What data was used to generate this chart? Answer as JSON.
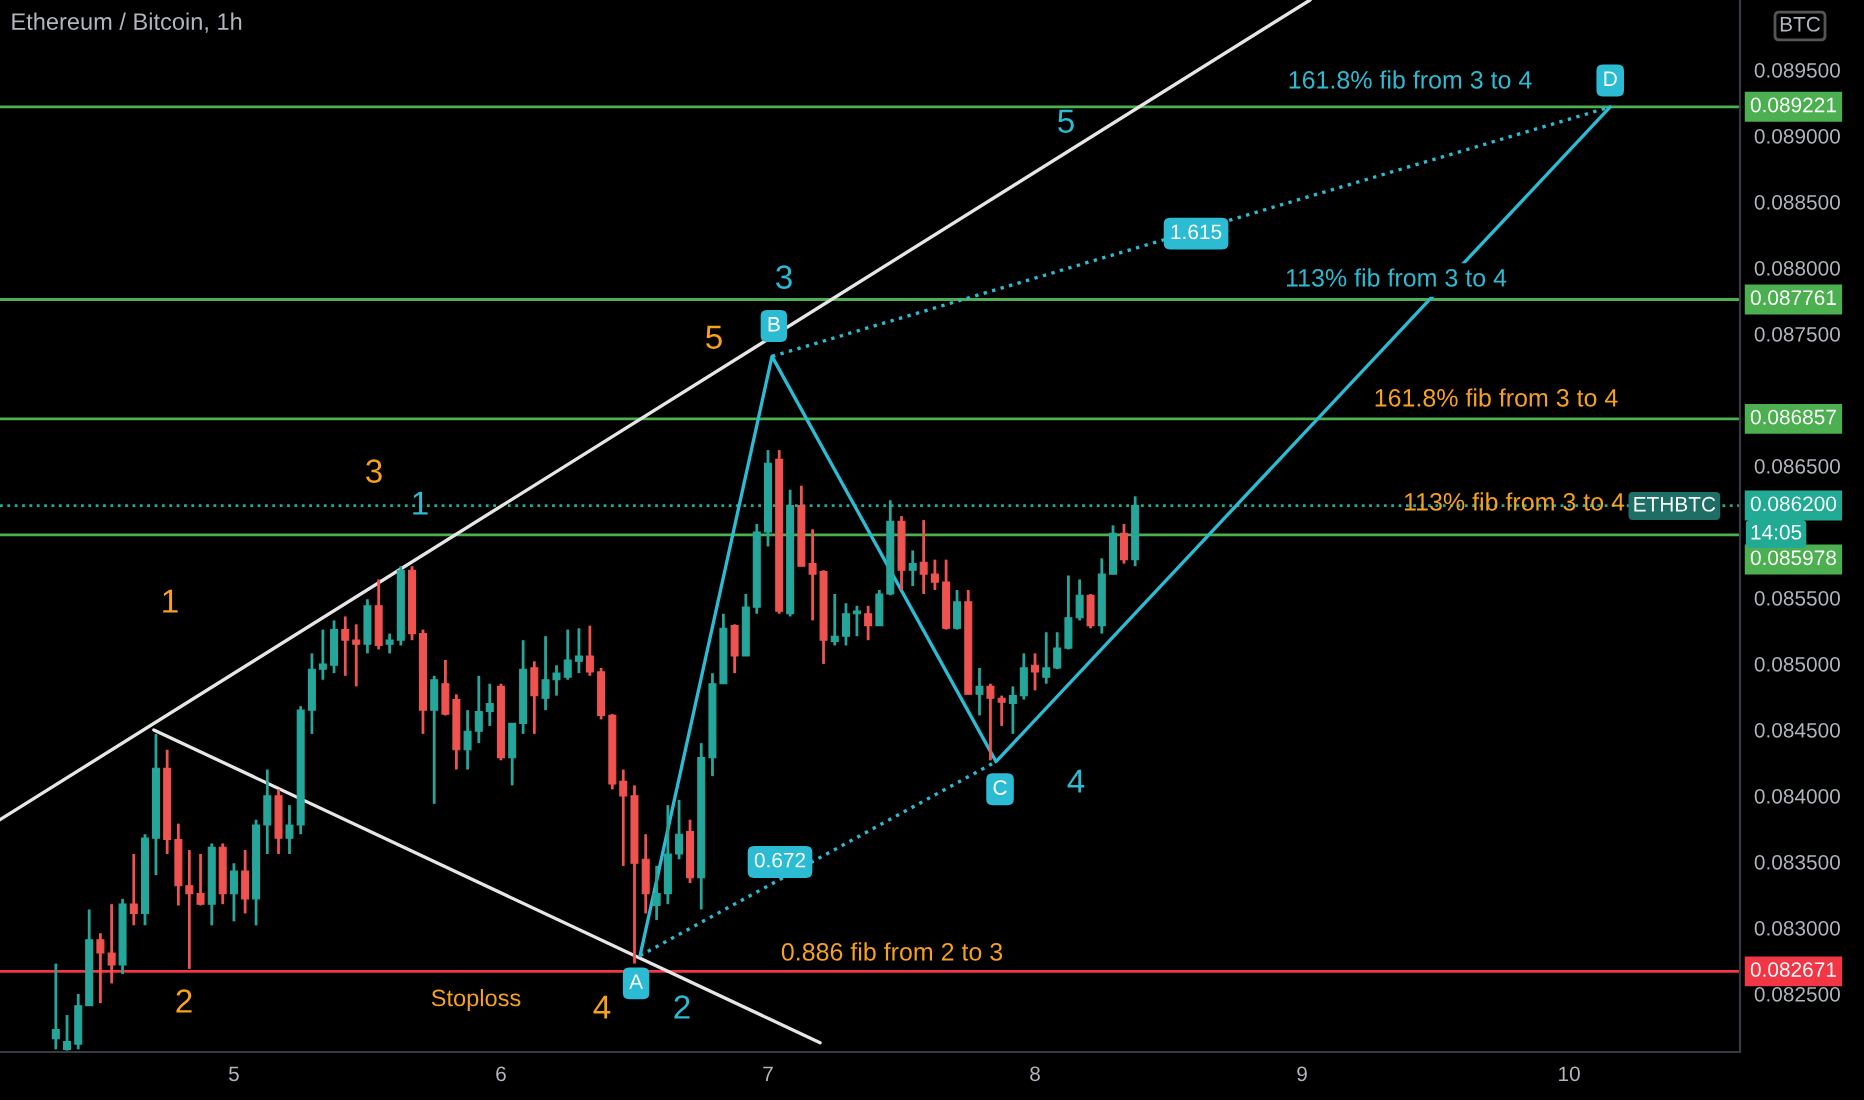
{
  "chart_data": {
    "type": "candlestick",
    "title": "Ethereum / Bitcoin, 1h",
    "x": [
      4.333,
      4.375,
      4.417,
      4.458,
      4.5,
      4.542,
      4.583,
      4.625,
      4.667,
      4.708,
      4.75,
      4.792,
      4.833,
      4.875,
      4.917,
      4.958,
      5,
      5.042,
      5.083,
      5.125,
      5.167,
      5.208,
      5.25,
      5.292,
      5.333,
      5.375,
      5.417,
      5.458,
      5.5,
      5.542,
      5.583,
      5.625,
      5.667,
      5.708,
      5.75,
      5.792,
      5.833,
      5.875,
      5.917,
      5.958,
      6,
      6.042,
      6.083,
      6.125,
      6.167,
      6.208,
      6.25,
      6.292,
      6.333,
      6.375,
      6.417,
      6.458,
      6.5,
      6.542,
      6.583,
      6.625,
      6.667,
      6.708,
      6.75,
      6.792,
      6.833,
      6.875,
      6.917,
      6.958,
      7,
      7.042,
      7.083,
      7.125,
      7.167,
      7.208,
      7.25,
      7.292,
      7.333,
      7.375,
      7.417,
      7.458,
      7.5,
      7.542,
      7.583,
      7.625,
      7.667,
      7.708,
      7.75,
      7.792,
      7.833,
      7.875,
      7.917,
      7.958,
      8,
      8.042,
      8.083,
      8.125,
      8.167,
      8.208,
      8.25,
      8.292,
      8.333,
      8.375
    ],
    "ohlc": [
      [
        0.08216,
        0.08273,
        0.08208,
        0.08223
      ],
      [
        0.08208,
        0.08234,
        0.08207,
        0.08214
      ],
      [
        0.08212,
        0.0825,
        0.08208,
        0.08241
      ],
      [
        0.08241,
        0.08314,
        0.08241,
        0.08291
      ],
      [
        0.08291,
        0.08296,
        0.08243,
        0.08281
      ],
      [
        0.08281,
        0.08318,
        0.08258,
        0.08272
      ],
      [
        0.08272,
        0.08322,
        0.08265,
        0.08318
      ],
      [
        0.08318,
        0.08356,
        0.08302,
        0.08311
      ],
      [
        0.08311,
        0.08371,
        0.08302,
        0.08368
      ],
      [
        0.08368,
        0.08447,
        0.0834,
        0.08421
      ],
      [
        0.08421,
        0.08435,
        0.08356,
        0.08367
      ],
      [
        0.08367,
        0.08379,
        0.08317,
        0.08332
      ],
      [
        0.08332,
        0.08359,
        0.08269,
        0.08326
      ],
      [
        0.08326,
        0.08356,
        0.08317,
        0.08318
      ],
      [
        0.08318,
        0.08364,
        0.08302,
        0.08361
      ],
      [
        0.08361,
        0.08364,
        0.08318,
        0.08326
      ],
      [
        0.08326,
        0.08349,
        0.08305,
        0.08343
      ],
      [
        0.08343,
        0.08359,
        0.08311,
        0.08322
      ],
      [
        0.08322,
        0.08382,
        0.08302,
        0.08378
      ],
      [
        0.08378,
        0.0842,
        0.08356,
        0.084
      ],
      [
        0.084,
        0.08405,
        0.08356,
        0.08368
      ],
      [
        0.08368,
        0.08393,
        0.08356,
        0.08378
      ],
      [
        0.08378,
        0.08468,
        0.08371,
        0.08465
      ],
      [
        0.08465,
        0.08508,
        0.08447,
        0.08496
      ],
      [
        0.08496,
        0.08526,
        0.08488,
        0.085
      ],
      [
        0.08499,
        0.08533,
        0.08493,
        0.08526
      ],
      [
        0.08526,
        0.08536,
        0.08491,
        0.08518
      ],
      [
        0.08518,
        0.0853,
        0.08483,
        0.08515
      ],
      [
        0.08515,
        0.08549,
        0.08508,
        0.08544
      ],
      [
        0.08544,
        0.08564,
        0.08511,
        0.08514
      ],
      [
        0.08515,
        0.08523,
        0.08508,
        0.08518
      ],
      [
        0.08518,
        0.08574,
        0.08514,
        0.08571
      ],
      [
        0.08571,
        0.08574,
        0.08518,
        0.08523
      ],
      [
        0.08523,
        0.08526,
        0.08447,
        0.08465
      ],
      [
        0.08465,
        0.08491,
        0.08394,
        0.08488
      ],
      [
        0.08485,
        0.08503,
        0.08461,
        0.08462
      ],
      [
        0.08473,
        0.08477,
        0.0842,
        0.08435
      ],
      [
        0.08435,
        0.08465,
        0.0842,
        0.08449
      ],
      [
        0.08449,
        0.08491,
        0.0844,
        0.08464
      ],
      [
        0.08464,
        0.08485,
        0.08453,
        0.0847
      ],
      [
        0.08483,
        0.08485,
        0.08427,
        0.08429
      ],
      [
        0.08429,
        0.08455,
        0.08408,
        0.08455
      ],
      [
        0.08455,
        0.08518,
        0.08447,
        0.08496
      ],
      [
        0.08497,
        0.08502,
        0.08447,
        0.08476
      ],
      [
        0.08474,
        0.08521,
        0.08465,
        0.08488
      ],
      [
        0.08488,
        0.08499,
        0.08476,
        0.08493
      ],
      [
        0.0849,
        0.08526,
        0.08488,
        0.08503
      ],
      [
        0.08502,
        0.08527,
        0.08493,
        0.08506
      ],
      [
        0.08506,
        0.08529,
        0.08491,
        0.08494
      ],
      [
        0.08494,
        0.08497,
        0.08458,
        0.08461
      ],
      [
        0.08461,
        0.08462,
        0.08405,
        0.08409
      ],
      [
        0.08411,
        0.0842,
        0.08347,
        0.084
      ],
      [
        0.084,
        0.08408,
        0.08273,
        0.08349
      ],
      [
        0.08352,
        0.08371,
        0.08311,
        0.08326
      ],
      [
        0.08317,
        0.08347,
        0.08306,
        0.08326
      ],
      [
        0.08326,
        0.08393,
        0.08318,
        0.08356
      ],
      [
        0.08356,
        0.08397,
        0.08352,
        0.08371
      ],
      [
        0.08373,
        0.08382,
        0.08334,
        0.08338
      ],
      [
        0.08338,
        0.0844,
        0.08314,
        0.08429
      ],
      [
        0.08429,
        0.08493,
        0.08415,
        0.08485
      ],
      [
        0.08485,
        0.08538,
        0.08485,
        0.08527
      ],
      [
        0.08529,
        0.0853,
        0.08493,
        0.08506
      ],
      [
        0.08506,
        0.08553,
        0.08506,
        0.08543
      ],
      [
        0.08543,
        0.08606,
        0.08538,
        0.086
      ],
      [
        0.086,
        0.08662,
        0.08589,
        0.08652
      ],
      [
        0.08655,
        0.08662,
        0.08538,
        0.0854
      ],
      [
        0.08538,
        0.08632,
        0.08536,
        0.0862
      ],
      [
        0.0862,
        0.08635,
        0.08574,
        0.08574
      ],
      [
        0.08576,
        0.08602,
        0.08533,
        0.08568
      ],
      [
        0.0857,
        0.08571,
        0.085,
        0.08518
      ],
      [
        0.08517,
        0.08553,
        0.08514,
        0.08521
      ],
      [
        0.08521,
        0.08546,
        0.08514,
        0.08538
      ],
      [
        0.08538,
        0.08544,
        0.08521,
        0.0854
      ],
      [
        0.08538,
        0.08544,
        0.08518,
        0.08529
      ],
      [
        0.08529,
        0.08556,
        0.08529,
        0.08553
      ],
      [
        0.08553,
        0.08624,
        0.08552,
        0.08608
      ],
      [
        0.08608,
        0.08612,
        0.08556,
        0.08571
      ],
      [
        0.08571,
        0.08586,
        0.08559,
        0.08576
      ],
      [
        0.08577,
        0.08609,
        0.08553,
        0.08568
      ],
      [
        0.08568,
        0.08579,
        0.08556,
        0.08562
      ],
      [
        0.08562,
        0.08579,
        0.08526,
        0.08527
      ],
      [
        0.08527,
        0.08556,
        0.08526,
        0.08547
      ],
      [
        0.08547,
        0.08556,
        0.08477,
        0.08477
      ],
      [
        0.08477,
        0.08497,
        0.08461,
        0.08483
      ],
      [
        0.08483,
        0.08485,
        0.08427,
        0.08474
      ],
      [
        0.08474,
        0.08476,
        0.08453,
        0.08471
      ],
      [
        0.0847,
        0.08483,
        0.08447,
        0.08476
      ],
      [
        0.08476,
        0.08508,
        0.08473,
        0.08497
      ],
      [
        0.08499,
        0.08508,
        0.0848,
        0.08494
      ],
      [
        0.0849,
        0.08524,
        0.08485,
        0.08497
      ],
      [
        0.08497,
        0.08524,
        0.08496,
        0.08512
      ],
      [
        0.08512,
        0.08567,
        0.08511,
        0.08535
      ],
      [
        0.08535,
        0.08564,
        0.08533,
        0.08552
      ],
      [
        0.08552,
        0.08553,
        0.08527,
        0.08529
      ],
      [
        0.08529,
        0.0858,
        0.08523,
        0.08568
      ],
      [
        0.08568,
        0.08605,
        0.08568,
        0.08599
      ],
      [
        0.08599,
        0.08606,
        0.08576,
        0.08579
      ],
      [
        0.08579,
        0.08627,
        0.08574,
        0.0862
      ]
    ],
    "series": [
      {
        "type": "line",
        "x": [
          4.124,
          9.03
        ],
        "values": [
          0.08382,
          0.09003
        ],
        "color": "#e6e6e6",
        "line_style": "solid"
      },
      {
        "type": "line",
        "x": [
          4.7,
          7.195
        ],
        "values": [
          0.0845,
          0.08213
        ],
        "color": "#e6e6e6",
        "line_style": "solid"
      },
      {
        "type": "line",
        "x": [
          6.521,
          7.015,
          7.854,
          10.154
        ],
        "values": [
          0.08279,
          0.08733,
          0.08426,
          0.08922
        ],
        "color": "#2bbcd4",
        "line_style": "solid"
      },
      {
        "type": "line",
        "x": [
          6.521,
          7.854
        ],
        "values": [
          0.08279,
          0.08426
        ],
        "color": "#2bbcd4",
        "line_style": "dotted"
      },
      {
        "type": "line",
        "x": [
          7.015,
          10.154
        ],
        "values": [
          0.08733,
          0.08922
        ],
        "color": "#2bbcd4",
        "line_style": "dotted"
      }
    ],
    "ref_lines": [
      {
        "axis": "y",
        "value": 0.089221,
        "label": "0.089221",
        "color": "#4caf50"
      },
      {
        "axis": "y",
        "value": 0.087761,
        "label": "0.087761",
        "color": "#4caf50"
      },
      {
        "axis": "y",
        "value": 0.086857,
        "label": "0.086857",
        "color": "#4caf50"
      },
      {
        "axis": "y",
        "value": 0.0862,
        "label": "0.086200",
        "color": "#22ab94",
        "line_style": "dotted"
      },
      {
        "axis": "y",
        "value": 0.085978,
        "label": "0.085978",
        "color": "#4caf50"
      },
      {
        "axis": "y",
        "value": 0.082671,
        "label": "0.082671",
        "color": "#f23645"
      }
    ],
    "annotations": [
      "1",
      "2",
      "3",
      "4",
      "5",
      "1",
      "2",
      "3",
      "4",
      "5",
      "Stoploss",
      "0.886 fib from 2 to 3",
      "161.8% fib from 3 to 4",
      "113% fib from 3 to 4",
      "161.8% fib from 3 to 4",
      "113% fib from 3 to 4",
      {
        "text": "A",
        "x": 6.506,
        "y": 0.08258
      },
      {
        "text": "B",
        "x": 7.022,
        "y": 0.08756
      },
      {
        "text": "C",
        "x": 7.869,
        "y": 0.08405
      },
      {
        "text": "D",
        "x": 10.154,
        "y": 0.08942
      },
      {
        "text": "0.672",
        "x": 7.045,
        "y": 0.0835
      },
      {
        "text": "1.615",
        "x": 8.603,
        "y": 0.08826
      },
      "14:05",
      "ETHBTC",
      "BTC"
    ],
    "xlim": [
      4.124,
      10.64
    ],
    "ylim": [
      0.08206,
      0.09003
    ],
    "xticks": [
      5,
      6,
      7,
      8,
      9,
      10
    ],
    "yticks": [
      {
        "value": 0.0825,
        "label": "0.082500"
      },
      {
        "value": 0.083,
        "label": "0.083000"
      },
      {
        "value": 0.0835,
        "label": "0.083500"
      },
      {
        "value": 0.084,
        "label": "0.084000"
      },
      {
        "value": 0.0845,
        "label": "0.084500"
      },
      {
        "value": 0.085,
        "label": "0.085000"
      },
      {
        "value": 0.0855,
        "label": "0.085500"
      },
      {
        "value": 0.0865,
        "label": "0.086500"
      },
      {
        "value": 0.0875,
        "label": "0.087500"
      },
      {
        "value": 0.088,
        "label": "0.088000"
      },
      {
        "value": 0.0885,
        "label": "0.088500"
      },
      {
        "value": 0.089,
        "label": "0.089000"
      },
      {
        "value": 0.0895,
        "label": "0.089500"
      }
    ]
  }
}
